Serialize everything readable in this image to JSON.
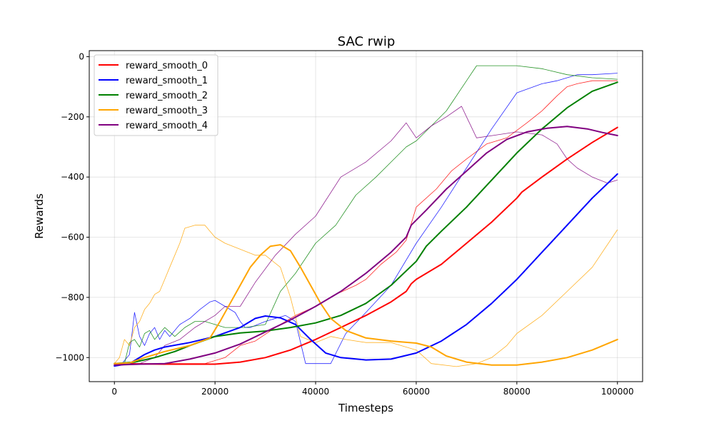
{
  "chart_data": {
    "type": "line",
    "title": "SAC rwip",
    "xlabel": "Timesteps",
    "ylabel": "Rewards",
    "xlim": [
      -5000,
      105000
    ],
    "ylim": [
      -1080,
      20
    ],
    "xticks": [
      0,
      20000,
      40000,
      60000,
      80000,
      100000
    ],
    "yticks": [
      -1000,
      -800,
      -600,
      -400,
      -200,
      0
    ],
    "grid": true,
    "legend_position": "top-left",
    "series": [
      {
        "name": "reward_smooth_0",
        "color": "#ff0000",
        "raw": [
          [
            0,
            -1020
          ],
          [
            5000,
            -1020
          ],
          [
            10000,
            -1020
          ],
          [
            15000,
            -1020
          ],
          [
            18000,
            -1020
          ],
          [
            22000,
            -1000
          ],
          [
            25000,
            -960
          ],
          [
            28000,
            -945
          ],
          [
            32000,
            -900
          ],
          [
            36000,
            -860
          ],
          [
            40000,
            -830
          ],
          [
            44000,
            -790
          ],
          [
            48000,
            -760
          ],
          [
            50000,
            -740
          ],
          [
            53000,
            -690
          ],
          [
            56000,
            -650
          ],
          [
            58000,
            -610
          ],
          [
            60000,
            -500
          ],
          [
            62000,
            -470
          ],
          [
            64000,
            -440
          ],
          [
            67000,
            -380
          ],
          [
            70000,
            -340
          ],
          [
            74000,
            -290
          ],
          [
            78000,
            -270
          ],
          [
            82000,
            -220
          ],
          [
            85000,
            -180
          ],
          [
            88000,
            -130
          ],
          [
            90000,
            -100
          ],
          [
            92000,
            -90
          ],
          [
            95000,
            -80
          ],
          [
            100000,
            -80
          ]
        ],
        "smooth": [
          [
            0,
            -1020
          ],
          [
            10000,
            -1022
          ],
          [
            20000,
            -1022
          ],
          [
            25000,
            -1015
          ],
          [
            30000,
            -1000
          ],
          [
            35000,
            -975
          ],
          [
            40000,
            -940
          ],
          [
            45000,
            -900
          ],
          [
            50000,
            -860
          ],
          [
            55000,
            -815
          ],
          [
            58000,
            -780
          ],
          [
            59000,
            -755
          ],
          [
            60000,
            -740
          ],
          [
            65000,
            -690
          ],
          [
            70000,
            -620
          ],
          [
            75000,
            -550
          ],
          [
            80000,
            -470
          ],
          [
            81000,
            -450
          ],
          [
            85000,
            -400
          ],
          [
            90000,
            -340
          ],
          [
            95000,
            -285
          ],
          [
            100000,
            -235
          ]
        ]
      },
      {
        "name": "reward_smooth_1",
        "color": "#0000ff",
        "raw": [
          [
            0,
            -1020
          ],
          [
            1500,
            -1020
          ],
          [
            3000,
            -990
          ],
          [
            4000,
            -850
          ],
          [
            5000,
            -930
          ],
          [
            6000,
            -960
          ],
          [
            7000,
            -920
          ],
          [
            8000,
            -900
          ],
          [
            9000,
            -940
          ],
          [
            10000,
            -910
          ],
          [
            11000,
            -930
          ],
          [
            12000,
            -910
          ],
          [
            13000,
            -890
          ],
          [
            15000,
            -870
          ],
          [
            17000,
            -840
          ],
          [
            19000,
            -815
          ],
          [
            20000,
            -810
          ],
          [
            22000,
            -830
          ],
          [
            24000,
            -850
          ],
          [
            25000,
            -880
          ],
          [
            26000,
            -900
          ],
          [
            27000,
            -900
          ],
          [
            30000,
            -880
          ],
          [
            34000,
            -860
          ],
          [
            36000,
            -880
          ],
          [
            38000,
            -1020
          ],
          [
            40000,
            -1020
          ],
          [
            43000,
            -1020
          ],
          [
            46000,
            -920
          ],
          [
            50000,
            -850
          ],
          [
            55000,
            -760
          ],
          [
            60000,
            -620
          ],
          [
            65000,
            -500
          ],
          [
            70000,
            -370
          ],
          [
            75000,
            -240
          ],
          [
            80000,
            -120
          ],
          [
            85000,
            -90
          ],
          [
            88000,
            -80
          ],
          [
            92000,
            -60
          ],
          [
            95000,
            -60
          ],
          [
            100000,
            -55
          ]
        ],
        "smooth": [
          [
            0,
            -1028
          ],
          [
            3000,
            -1020
          ],
          [
            6000,
            -990
          ],
          [
            8000,
            -975
          ],
          [
            10000,
            -965
          ],
          [
            15000,
            -950
          ],
          [
            20000,
            -930
          ],
          [
            25000,
            -900
          ],
          [
            28000,
            -870
          ],
          [
            30000,
            -862
          ],
          [
            33000,
            -868
          ],
          [
            36000,
            -890
          ],
          [
            39000,
            -940
          ],
          [
            42000,
            -985
          ],
          [
            45000,
            -1000
          ],
          [
            50000,
            -1008
          ],
          [
            55000,
            -1005
          ],
          [
            60000,
            -985
          ],
          [
            65000,
            -945
          ],
          [
            70000,
            -890
          ],
          [
            75000,
            -820
          ],
          [
            80000,
            -740
          ],
          [
            85000,
            -650
          ],
          [
            90000,
            -560
          ],
          [
            95000,
            -470
          ],
          [
            100000,
            -390
          ]
        ]
      },
      {
        "name": "reward_smooth_2",
        "color": "#008000",
        "raw": [
          [
            0,
            -1020
          ],
          [
            2000,
            -1020
          ],
          [
            3000,
            -950
          ],
          [
            4000,
            -940
          ],
          [
            5000,
            -965
          ],
          [
            6000,
            -920
          ],
          [
            7000,
            -910
          ],
          [
            8000,
            -940
          ],
          [
            9000,
            -920
          ],
          [
            10000,
            -900
          ],
          [
            12000,
            -930
          ],
          [
            14000,
            -900
          ],
          [
            16000,
            -880
          ],
          [
            18000,
            -880
          ],
          [
            20000,
            -890
          ],
          [
            22000,
            -900
          ],
          [
            26000,
            -900
          ],
          [
            30000,
            -890
          ],
          [
            33000,
            -780
          ],
          [
            36000,
            -720
          ],
          [
            40000,
            -620
          ],
          [
            44000,
            -560
          ],
          [
            48000,
            -460
          ],
          [
            52000,
            -400
          ],
          [
            55000,
            -350
          ],
          [
            58000,
            -300
          ],
          [
            60000,
            -280
          ],
          [
            63000,
            -230
          ],
          [
            66000,
            -180
          ],
          [
            70000,
            -80
          ],
          [
            72000,
            -30
          ],
          [
            80000,
            -30
          ],
          [
            85000,
            -40
          ],
          [
            90000,
            -60
          ],
          [
            95000,
            -70
          ],
          [
            100000,
            -75
          ]
        ],
        "smooth": [
          [
            0,
            -1020
          ],
          [
            4000,
            -1015
          ],
          [
            8000,
            -1000
          ],
          [
            12000,
            -980
          ],
          [
            15000,
            -960
          ],
          [
            20000,
            -930
          ],
          [
            25000,
            -918
          ],
          [
            30000,
            -912
          ],
          [
            35000,
            -900
          ],
          [
            40000,
            -885
          ],
          [
            45000,
            -860
          ],
          [
            50000,
            -820
          ],
          [
            55000,
            -760
          ],
          [
            60000,
            -680
          ],
          [
            62000,
            -630
          ],
          [
            65000,
            -580
          ],
          [
            70000,
            -500
          ],
          [
            75000,
            -410
          ],
          [
            80000,
            -320
          ],
          [
            85000,
            -240
          ],
          [
            90000,
            -170
          ],
          [
            95000,
            -115
          ],
          [
            100000,
            -85
          ]
        ]
      },
      {
        "name": "reward_smooth_3",
        "color": "#ffa500",
        "raw": [
          [
            0,
            -1020
          ],
          [
            1000,
            -1000
          ],
          [
            2000,
            -940
          ],
          [
            3000,
            -960
          ],
          [
            4000,
            -900
          ],
          [
            5000,
            -880
          ],
          [
            6000,
            -840
          ],
          [
            7000,
            -820
          ],
          [
            8000,
            -790
          ],
          [
            9000,
            -780
          ],
          [
            10000,
            -740
          ],
          [
            11000,
            -700
          ],
          [
            12000,
            -660
          ],
          [
            13000,
            -620
          ],
          [
            14000,
            -570
          ],
          [
            16000,
            -560
          ],
          [
            18000,
            -560
          ],
          [
            20000,
            -600
          ],
          [
            22000,
            -620
          ],
          [
            25000,
            -640
          ],
          [
            28000,
            -660
          ],
          [
            30000,
            -660
          ],
          [
            33000,
            -700
          ],
          [
            35000,
            -800
          ],
          [
            37000,
            -930
          ],
          [
            40000,
            -950
          ],
          [
            43000,
            -930
          ],
          [
            46000,
            -940
          ],
          [
            50000,
            -950
          ],
          [
            55000,
            -950
          ],
          [
            60000,
            -975
          ],
          [
            63000,
            -1020
          ],
          [
            68000,
            -1030
          ],
          [
            72000,
            -1020
          ],
          [
            75000,
            -1000
          ],
          [
            78000,
            -960
          ],
          [
            80000,
            -920
          ],
          [
            85000,
            -860
          ],
          [
            90000,
            -780
          ],
          [
            95000,
            -700
          ],
          [
            100000,
            -575
          ]
        ],
        "smooth": [
          [
            0,
            -1020
          ],
          [
            3000,
            -1018
          ],
          [
            6000,
            -1000
          ],
          [
            10000,
            -980
          ],
          [
            15000,
            -960
          ],
          [
            19000,
            -935
          ],
          [
            21000,
            -880
          ],
          [
            23000,
            -820
          ],
          [
            25000,
            -760
          ],
          [
            27000,
            -700
          ],
          [
            29000,
            -660
          ],
          [
            31000,
            -630
          ],
          [
            33000,
            -625
          ],
          [
            35000,
            -645
          ],
          [
            37000,
            -700
          ],
          [
            39000,
            -760
          ],
          [
            41000,
            -820
          ],
          [
            43000,
            -870
          ],
          [
            46000,
            -910
          ],
          [
            50000,
            -935
          ],
          [
            55000,
            -945
          ],
          [
            60000,
            -952
          ],
          [
            63000,
            -965
          ],
          [
            66000,
            -995
          ],
          [
            70000,
            -1015
          ],
          [
            75000,
            -1025
          ],
          [
            80000,
            -1025
          ],
          [
            85000,
            -1015
          ],
          [
            90000,
            -1000
          ],
          [
            95000,
            -975
          ],
          [
            100000,
            -940
          ]
        ]
      },
      {
        "name": "reward_smooth_4",
        "color": "#800080",
        "raw": [
          [
            0,
            -1020
          ],
          [
            5000,
            -1020
          ],
          [
            8000,
            -1000
          ],
          [
            10000,
            -960
          ],
          [
            13000,
            -940
          ],
          [
            16000,
            -900
          ],
          [
            18000,
            -880
          ],
          [
            20000,
            -860
          ],
          [
            22000,
            -830
          ],
          [
            25000,
            -830
          ],
          [
            28000,
            -750
          ],
          [
            32000,
            -660
          ],
          [
            36000,
            -590
          ],
          [
            40000,
            -530
          ],
          [
            45000,
            -400
          ],
          [
            50000,
            -350
          ],
          [
            55000,
            -280
          ],
          [
            58000,
            -220
          ],
          [
            60000,
            -270
          ],
          [
            63000,
            -230
          ],
          [
            66000,
            -200
          ],
          [
            69000,
            -165
          ],
          [
            70000,
            -200
          ],
          [
            72000,
            -270
          ],
          [
            76000,
            -260
          ],
          [
            80000,
            -250
          ],
          [
            85000,
            -260
          ],
          [
            88000,
            -290
          ],
          [
            90000,
            -340
          ],
          [
            92000,
            -370
          ],
          [
            95000,
            -400
          ],
          [
            98000,
            -420
          ],
          [
            100000,
            -410
          ]
        ],
        "smooth": [
          [
            0,
            -1025
          ],
          [
            5000,
            -1022
          ],
          [
            10000,
            -1020
          ],
          [
            15000,
            -1005
          ],
          [
            20000,
            -985
          ],
          [
            25000,
            -955
          ],
          [
            30000,
            -915
          ],
          [
            35000,
            -875
          ],
          [
            40000,
            -830
          ],
          [
            45000,
            -780
          ],
          [
            50000,
            -720
          ],
          [
            55000,
            -650
          ],
          [
            58000,
            -600
          ],
          [
            59000,
            -560
          ],
          [
            62000,
            -510
          ],
          [
            66000,
            -440
          ],
          [
            70000,
            -380
          ],
          [
            74000,
            -320
          ],
          [
            78000,
            -275
          ],
          [
            82000,
            -250
          ],
          [
            86000,
            -238
          ],
          [
            90000,
            -232
          ],
          [
            94000,
            -240
          ],
          [
            97000,
            -252
          ],
          [
            100000,
            -262
          ]
        ]
      }
    ]
  }
}
